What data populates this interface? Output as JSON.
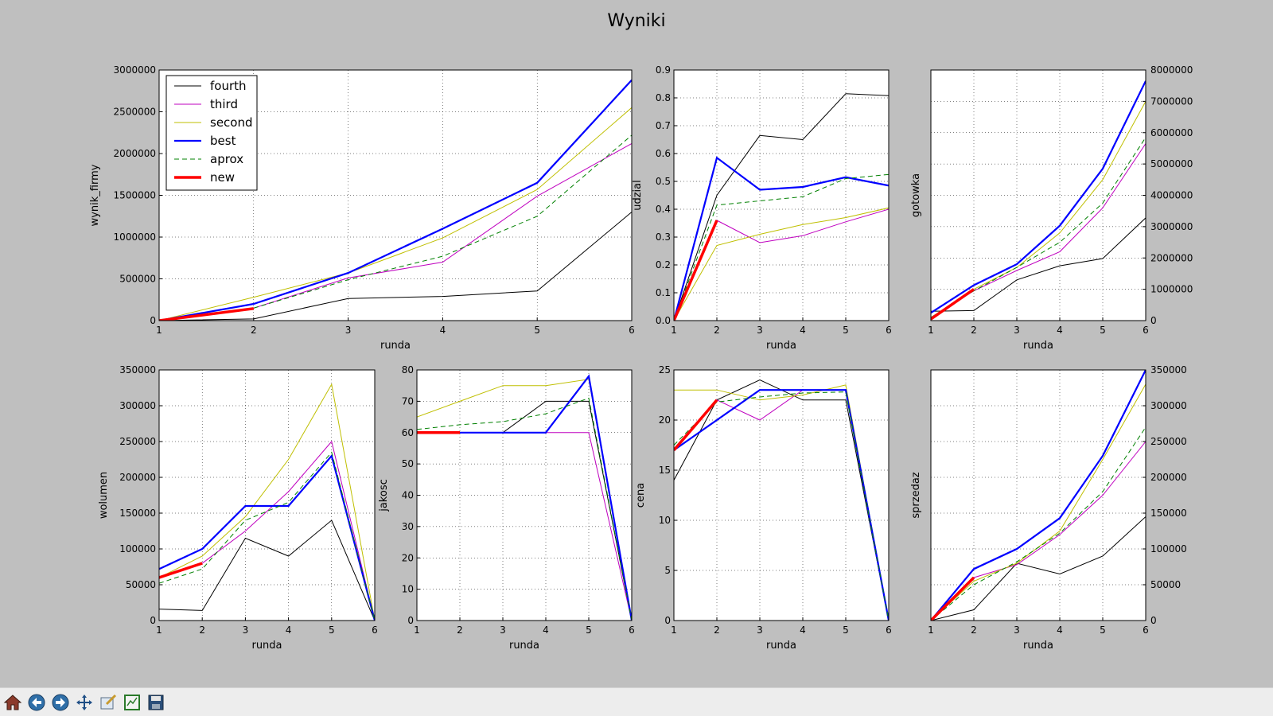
{
  "figure": {
    "title": "Wyniki"
  },
  "colors": {
    "fourth": "#000000",
    "third": "#bf00bf",
    "second": "#bfbf00",
    "best": "#0000ff",
    "aprox": "#008000",
    "new": "#ff0000"
  },
  "chart_data": [
    {
      "type": "line",
      "title": "",
      "xlabel": "runda",
      "ylabel": "wynik_firmy",
      "xlim": [
        1,
        6
      ],
      "ylim": [
        0,
        3000000
      ],
      "yticks": [
        0,
        500000,
        1000000,
        1500000,
        2000000,
        2500000,
        3000000
      ],
      "y_axis_side": "left",
      "grid": true,
      "legend": "upper-left",
      "series": [
        {
          "name": "fourth",
          "x": [
            1,
            2,
            3,
            4,
            5,
            6
          ],
          "y": [
            0,
            20000,
            265000,
            290000,
            355000,
            1300000
          ]
        },
        {
          "name": "third",
          "x": [
            1,
            2,
            3,
            4,
            5,
            6
          ],
          "y": [
            0,
            150000,
            510000,
            700000,
            1490000,
            2120000
          ]
        },
        {
          "name": "second",
          "x": [
            1,
            2,
            3,
            4,
            5,
            6
          ],
          "y": [
            0,
            280000,
            570000,
            990000,
            1570000,
            2550000
          ]
        },
        {
          "name": "best",
          "x": [
            1,
            2,
            3,
            4,
            5,
            6
          ],
          "y": [
            0,
            200000,
            570000,
            1100000,
            1650000,
            2880000
          ]
        },
        {
          "name": "aprox",
          "x": [
            1,
            2,
            3,
            4,
            5,
            6
          ],
          "y": [
            0,
            150000,
            490000,
            770000,
            1250000,
            2220000
          ]
        },
        {
          "name": "new",
          "x": [
            1,
            2
          ],
          "y": [
            0,
            145000
          ]
        }
      ]
    },
    {
      "type": "line",
      "title": "",
      "xlabel": "runda",
      "ylabel": "udzial",
      "xlim": [
        1,
        6
      ],
      "ylim": [
        0,
        0.9
      ],
      "yticks": [
        0.0,
        0.1,
        0.2,
        0.3,
        0.4,
        0.5,
        0.6,
        0.7,
        0.8,
        0.9
      ],
      "y_axis_side": "left",
      "grid": true,
      "series": [
        {
          "name": "fourth",
          "x": [
            1,
            2,
            3,
            4,
            5,
            6
          ],
          "y": [
            0,
            0.45,
            0.665,
            0.65,
            0.815,
            0.808
          ]
        },
        {
          "name": "third",
          "x": [
            1,
            2,
            3,
            4,
            5,
            6
          ],
          "y": [
            0,
            0.36,
            0.28,
            0.305,
            0.355,
            0.4
          ]
        },
        {
          "name": "second",
          "x": [
            1,
            2,
            3,
            4,
            5,
            6
          ],
          "y": [
            0,
            0.27,
            0.31,
            0.345,
            0.37,
            0.405
          ]
        },
        {
          "name": "best",
          "x": [
            1,
            2,
            3,
            4,
            5,
            6
          ],
          "y": [
            0,
            0.585,
            0.47,
            0.48,
            0.515,
            0.485
          ]
        },
        {
          "name": "aprox",
          "x": [
            1,
            2,
            3,
            4,
            5,
            6
          ],
          "y": [
            0,
            0.415,
            0.43,
            0.445,
            0.51,
            0.525
          ]
        },
        {
          "name": "new",
          "x": [
            1,
            2
          ],
          "y": [
            0,
            0.36
          ]
        }
      ]
    },
    {
      "type": "line",
      "title": "",
      "xlabel": "runda",
      "ylabel": "gotowka",
      "xlim": [
        1,
        6
      ],
      "ylim": [
        0,
        8000000
      ],
      "yticks": [
        0,
        1000000,
        2000000,
        3000000,
        4000000,
        5000000,
        6000000,
        7000000,
        8000000
      ],
      "y_axis_side": "right",
      "grid": true,
      "series": [
        {
          "name": "fourth",
          "x": [
            1,
            2,
            3,
            4,
            5,
            6
          ],
          "y": [
            300000,
            320000,
            1300000,
            1750000,
            1980000,
            3280000
          ]
        },
        {
          "name": "third",
          "x": [
            1,
            2,
            3,
            4,
            5,
            6
          ],
          "y": [
            100000,
            950000,
            1600000,
            2200000,
            3600000,
            5650000
          ]
        },
        {
          "name": "second",
          "x": [
            1,
            2,
            3,
            4,
            5,
            6
          ],
          "y": [
            100000,
            1000000,
            1700000,
            2800000,
            4500000,
            7000000
          ]
        },
        {
          "name": "best",
          "x": [
            1,
            2,
            3,
            4,
            5,
            6
          ],
          "y": [
            250000,
            1130000,
            1800000,
            3030000,
            4850000,
            7650000
          ]
        },
        {
          "name": "aprox",
          "x": [
            1,
            2,
            3,
            4,
            5,
            6
          ],
          "y": [
            100000,
            950000,
            1700000,
            2500000,
            3750000,
            5850000
          ]
        },
        {
          "name": "new",
          "x": [
            1,
            2
          ],
          "y": [
            50000,
            1000000
          ]
        }
      ]
    },
    {
      "type": "line",
      "title": "",
      "xlabel": "runda",
      "ylabel": "wolumen",
      "xlim": [
        1,
        6
      ],
      "ylim": [
        0,
        350000
      ],
      "yticks": [
        0,
        50000,
        100000,
        150000,
        200000,
        250000,
        300000,
        350000
      ],
      "y_axis_side": "left",
      "grid": true,
      "series": [
        {
          "name": "fourth",
          "x": [
            1,
            2,
            3,
            4,
            5,
            6
          ],
          "y": [
            16000,
            14000,
            115000,
            90000,
            140000,
            0
          ]
        },
        {
          "name": "third",
          "x": [
            1,
            2,
            3,
            4,
            5,
            6
          ],
          "y": [
            60000,
            80000,
            125000,
            180000,
            250000,
            0
          ]
        },
        {
          "name": "second",
          "x": [
            1,
            2,
            3,
            4,
            5,
            6
          ],
          "y": [
            60000,
            90000,
            145000,
            225000,
            330000,
            0
          ]
        },
        {
          "name": "best",
          "x": [
            1,
            2,
            3,
            4,
            5,
            6
          ],
          "y": [
            72000,
            100000,
            160000,
            160000,
            230000,
            0
          ]
        },
        {
          "name": "aprox",
          "x": [
            1,
            2,
            3,
            4,
            5,
            6
          ],
          "y": [
            52000,
            72000,
            140000,
            165000,
            235000,
            0
          ]
        },
        {
          "name": "new",
          "x": [
            1,
            2
          ],
          "y": [
            60000,
            80000
          ]
        }
      ]
    },
    {
      "type": "line",
      "title": "",
      "xlabel": "runda",
      "ylabel": "jakosc",
      "xlim": [
        1,
        6
      ],
      "ylim": [
        0,
        80
      ],
      "yticks": [
        0,
        10,
        20,
        30,
        40,
        50,
        60,
        70,
        80
      ],
      "y_axis_side": "left",
      "grid": true,
      "series": [
        {
          "name": "fourth",
          "x": [
            1,
            2,
            3,
            4,
            5,
            6
          ],
          "y": [
            60,
            60,
            60,
            70,
            70,
            0
          ]
        },
        {
          "name": "third",
          "x": [
            1,
            2,
            3,
            4,
            5,
            6
          ],
          "y": [
            60,
            60,
            60,
            60,
            60,
            0
          ]
        },
        {
          "name": "second",
          "x": [
            1,
            2,
            3,
            4,
            5,
            6
          ],
          "y": [
            65,
            70,
            75,
            75,
            77,
            0
          ]
        },
        {
          "name": "best",
          "x": [
            1,
            2,
            3,
            4,
            5,
            6
          ],
          "y": [
            60,
            60,
            60,
            60,
            78,
            0
          ]
        },
        {
          "name": "aprox",
          "x": [
            1,
            2,
            3,
            4,
            5,
            6
          ],
          "y": [
            61,
            62.5,
            63.5,
            66,
            71,
            0
          ]
        },
        {
          "name": "new",
          "x": [
            1,
            2
          ],
          "y": [
            60,
            60
          ]
        }
      ]
    },
    {
      "type": "line",
      "title": "",
      "xlabel": "runda",
      "ylabel": "cena",
      "xlim": [
        1,
        6
      ],
      "ylim": [
        0,
        25
      ],
      "yticks": [
        0,
        5,
        10,
        15,
        20,
        25
      ],
      "y_axis_side": "left",
      "grid": true,
      "series": [
        {
          "name": "fourth",
          "x": [
            1,
            2,
            3,
            4,
            5,
            6
          ],
          "y": [
            14,
            22,
            24,
            22,
            22,
            0
          ]
        },
        {
          "name": "third",
          "x": [
            1,
            2,
            3,
            4,
            5,
            6
          ],
          "y": [
            17,
            22,
            20,
            23,
            23,
            0
          ]
        },
        {
          "name": "second",
          "x": [
            1,
            2,
            3,
            4,
            5,
            6
          ],
          "y": [
            23,
            23,
            22,
            22.5,
            23.5,
            0
          ]
        },
        {
          "name": "best",
          "x": [
            1,
            2,
            3,
            4,
            5,
            6
          ],
          "y": [
            17,
            20,
            23,
            23,
            23,
            0
          ]
        },
        {
          "name": "aprox",
          "x": [
            1,
            2,
            3,
            4,
            5,
            6
          ],
          "y": [
            17.5,
            21.8,
            22.3,
            22.7,
            22.8,
            0
          ]
        },
        {
          "name": "new",
          "x": [
            1,
            2
          ],
          "y": [
            17,
            22
          ]
        }
      ]
    },
    {
      "type": "line",
      "title": "",
      "xlabel": "runda",
      "ylabel": "sprzedaz",
      "xlim": [
        1,
        6
      ],
      "ylim": [
        0,
        350000
      ],
      "yticks": [
        0,
        50000,
        100000,
        150000,
        200000,
        250000,
        300000,
        350000
      ],
      "y_axis_side": "right",
      "grid": true,
      "series": [
        {
          "name": "fourth",
          "x": [
            1,
            2,
            3,
            4,
            5,
            6
          ],
          "y": [
            0,
            15000,
            80000,
            65000,
            90000,
            145000
          ]
        },
        {
          "name": "third",
          "x": [
            1,
            2,
            3,
            4,
            5,
            6
          ],
          "y": [
            0,
            60000,
            78000,
            120000,
            175000,
            250000
          ]
        },
        {
          "name": "second",
          "x": [
            1,
            2,
            3,
            4,
            5,
            6
          ],
          "y": [
            0,
            55000,
            80000,
            125000,
            225000,
            330000
          ]
        },
        {
          "name": "best",
          "x": [
            1,
            2,
            3,
            4,
            5,
            6
          ],
          "y": [
            0,
            72000,
            100000,
            143000,
            230000,
            350000
          ]
        },
        {
          "name": "aprox",
          "x": [
            1,
            2,
            3,
            4,
            5,
            6
          ],
          "y": [
            0,
            50000,
            82000,
            122000,
            180000,
            270000
          ]
        },
        {
          "name": "new",
          "x": [
            1,
            2
          ],
          "y": [
            0,
            60000
          ]
        }
      ]
    }
  ],
  "toolbar": {
    "buttons": [
      {
        "name": "home-button",
        "icon": "home-icon"
      },
      {
        "name": "back-button",
        "icon": "arrow-left-icon"
      },
      {
        "name": "forward-button",
        "icon": "arrow-right-icon"
      },
      {
        "name": "pan-button",
        "icon": "move-icon"
      },
      {
        "name": "zoom-button",
        "icon": "zoom-rect-icon"
      },
      {
        "name": "subplots-button",
        "icon": "subplots-icon"
      },
      {
        "name": "save-button",
        "icon": "floppy-icon"
      }
    ]
  }
}
